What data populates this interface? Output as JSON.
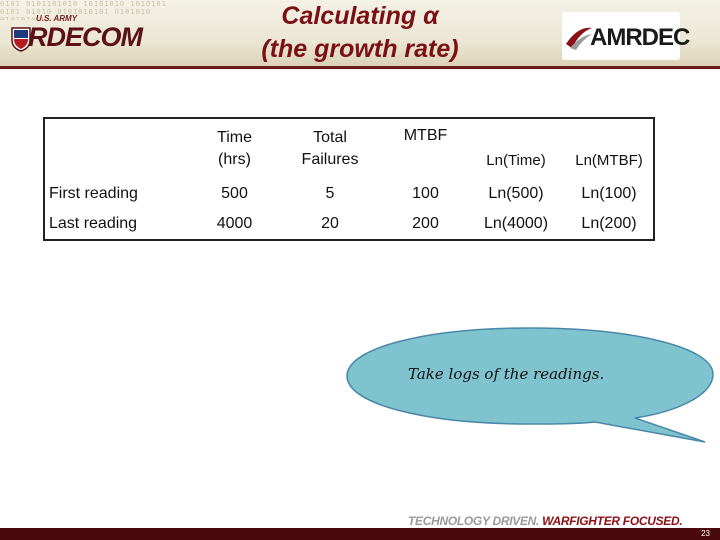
{
  "header": {
    "title_line1": "Calculating α",
    "title_line2": "(the growth rate)",
    "left_logo": {
      "tag": "U.S. ARMY",
      "word": "RDECOM"
    },
    "right_logo": {
      "word": "AMRDEC"
    },
    "texture": "0101 0101101010 10101010 1010101 0101 01010 0101010101 0101010 010101010"
  },
  "table": {
    "columns": [
      "",
      "Time (hrs)",
      "Total Failures",
      "MTBF",
      "Ln(Time)",
      "Ln(MTBF)"
    ],
    "col_time_line1": "Time",
    "col_time_line2": "(hrs)",
    "col_fail_line1": "Total",
    "col_fail_line2": "Failures",
    "col_mtbf": "MTBF",
    "col_lntime": "Ln(Time)",
    "col_lnmtbf": "Ln(MTBF)",
    "rows": [
      {
        "label": "First reading",
        "time": "500",
        "failures": "5",
        "mtbf": "100",
        "ln_time": "Ln(500)",
        "ln_mtbf": "Ln(100)"
      },
      {
        "label": "Last reading",
        "time": "4000",
        "failures": "20",
        "mtbf": "200",
        "ln_time": "Ln(4000)",
        "ln_mtbf": "Ln(200)"
      }
    ]
  },
  "callout": {
    "text": "Take logs of the readings.",
    "fill": "#7fc3cf",
    "stroke": "#4a87a8"
  },
  "footer": {
    "tagline_part1": "TECHNOLOGY DRIVEN.",
    "tagline_part2": "WARFIGHTER FOCUSED.",
    "page_number": "23"
  },
  "colors": {
    "maroon": "#7a0f14",
    "header_bg": "#ece7d4",
    "footer": "#4a0a0c"
  }
}
